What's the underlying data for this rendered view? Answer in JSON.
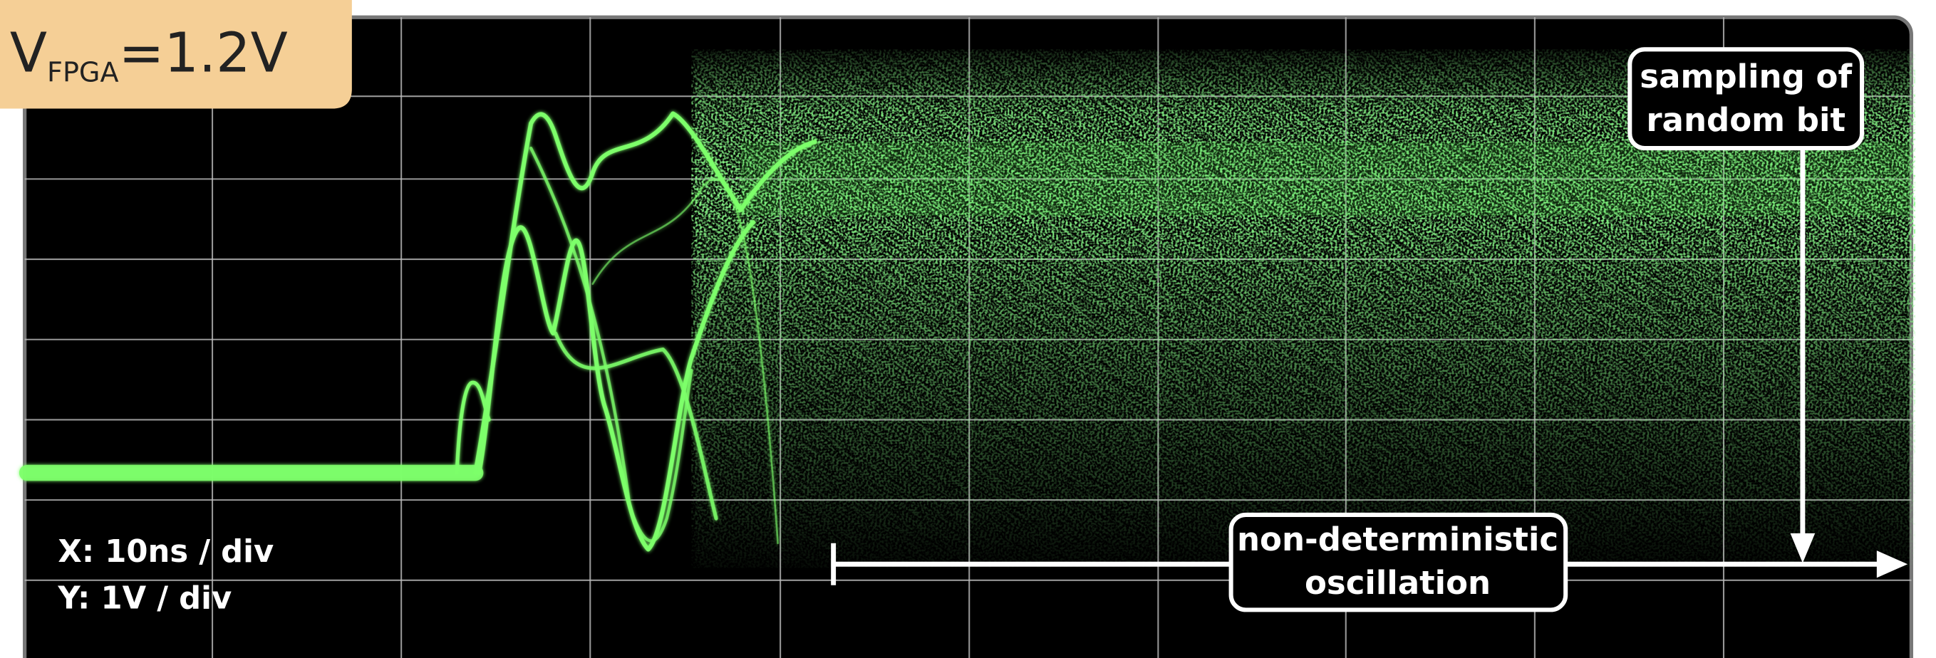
{
  "label": {
    "symbol": "V",
    "subscript": "FPGA",
    "value": "=1.2V"
  },
  "annotations": {
    "sampling": [
      "sampling of",
      "random bit"
    ],
    "oscillation": [
      "non-deterministic",
      "oscillation"
    ]
  },
  "scale": {
    "x": "X: 10ns / div",
    "y": "Y: 1V / div"
  }
}
